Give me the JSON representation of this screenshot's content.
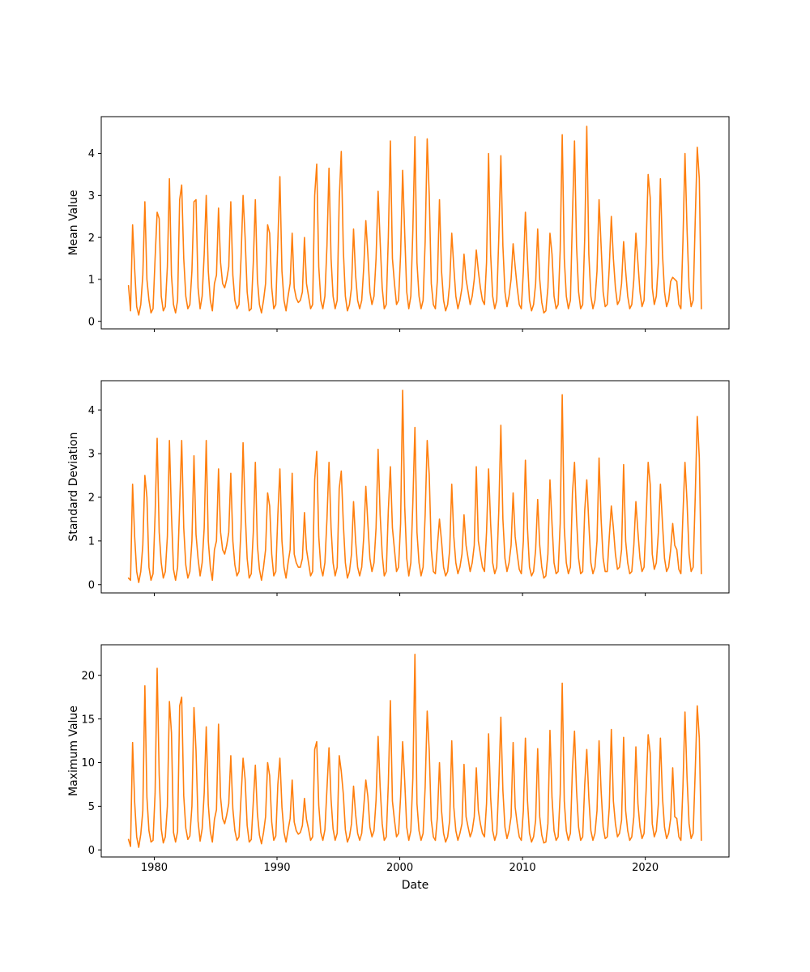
{
  "figure": {
    "background": "#ffffff",
    "line_color": "#ff7f0e",
    "text_color": "#000000"
  },
  "chart_data": [
    {
      "type": "line",
      "title": "",
      "ylabel": "Mean Value",
      "xlabel": "",
      "x_start": 1977.9,
      "x_step": 0.16667,
      "xlim": [
        1975.68,
        2026.82
      ],
      "ylim": [
        -0.18,
        4.88
      ],
      "xticks": [
        1980,
        1990,
        2000,
        2010,
        2020
      ],
      "show_x_tick_labels": false,
      "yticks": [
        0,
        1,
        2,
        3,
        4
      ],
      "grid": false,
      "legend": null,
      "series": [
        {
          "name": "mean",
          "values": [
            0.85,
            0.25,
            2.3,
            1.25,
            0.35,
            0.15,
            0.4,
            1.1,
            2.85,
            1.0,
            0.5,
            0.2,
            0.3,
            1.5,
            2.6,
            2.45,
            0.6,
            0.25,
            0.35,
            1.3,
            3.4,
            1.1,
            0.4,
            0.2,
            0.5,
            2.9,
            3.25,
            1.5,
            0.6,
            0.3,
            0.4,
            1.2,
            2.85,
            2.9,
            0.8,
            0.3,
            0.6,
            1.6,
            3.0,
            1.2,
            0.5,
            0.25,
            0.9,
            1.1,
            2.7,
            1.4,
            0.9,
            0.8,
            1.0,
            1.3,
            2.85,
            1.1,
            0.5,
            0.3,
            0.4,
            1.5,
            3.0,
            2.0,
            0.7,
            0.25,
            0.3,
            1.4,
            2.9,
            1.0,
            0.4,
            0.2,
            0.5,
            0.9,
            2.3,
            2.1,
            0.8,
            0.3,
            0.4,
            1.9,
            3.45,
            1.2,
            0.5,
            0.25,
            0.6,
            0.9,
            2.1,
            0.8,
            0.55,
            0.45,
            0.5,
            0.7,
            2.0,
            0.9,
            0.6,
            0.3,
            0.4,
            3.0,
            3.75,
            1.3,
            0.5,
            0.3,
            0.6,
            1.8,
            3.65,
            1.5,
            0.6,
            0.3,
            0.5,
            2.9,
            4.05,
            1.7,
            0.6,
            0.25,
            0.4,
            0.8,
            2.2,
            1.1,
            0.5,
            0.3,
            0.5,
            1.3,
            2.4,
            1.6,
            0.7,
            0.4,
            0.6,
            1.5,
            3.1,
            1.9,
            0.8,
            0.3,
            0.4,
            2.0,
            4.3,
            1.5,
            0.9,
            0.4,
            0.5,
            1.6,
            3.6,
            2.1,
            0.7,
            0.3,
            0.6,
            2.2,
            4.4,
            1.4,
            0.6,
            0.3,
            0.5,
            1.9,
            4.35,
            3.0,
            0.9,
            0.4,
            0.3,
            1.0,
            2.9,
            1.2,
            0.5,
            0.25,
            0.4,
            0.9,
            2.1,
            1.3,
            0.6,
            0.3,
            0.5,
            0.8,
            1.6,
            1.0,
            0.7,
            0.4,
            0.6,
            1.0,
            1.7,
            1.2,
            0.8,
            0.5,
            0.4,
            1.4,
            4.0,
            1.6,
            0.6,
            0.3,
            0.5,
            2.0,
            3.95,
            1.8,
            0.7,
            0.35,
            0.6,
            1.0,
            1.85,
            1.3,
            0.8,
            0.4,
            0.3,
            1.2,
            2.6,
            1.5,
            0.5,
            0.25,
            0.4,
            0.9,
            2.2,
            1.0,
            0.45,
            0.2,
            0.25,
            0.8,
            2.1,
            1.6,
            0.6,
            0.3,
            0.4,
            1.7,
            4.45,
            1.5,
            0.6,
            0.3,
            0.5,
            2.5,
            4.3,
            1.8,
            0.7,
            0.3,
            0.4,
            2.0,
            4.65,
            1.6,
            0.6,
            0.3,
            0.5,
            1.2,
            2.9,
            1.8,
            0.7,
            0.35,
            0.4,
            1.3,
            2.5,
            1.5,
            0.8,
            0.4,
            0.5,
            0.9,
            1.9,
            1.2,
            0.6,
            0.3,
            0.4,
            1.0,
            2.1,
            1.4,
            0.7,
            0.35,
            0.5,
            1.8,
            3.5,
            2.95,
            0.8,
            0.4,
            0.6,
            1.4,
            3.4,
            1.6,
            0.7,
            0.35,
            0.5,
            0.95,
            1.05,
            1.0,
            0.95,
            0.4,
            0.3,
            1.9,
            4.0,
            2.2,
            0.8,
            0.35,
            0.5,
            2.4,
            4.15,
            3.4,
            0.3
          ]
        }
      ]
    },
    {
      "type": "line",
      "title": "",
      "ylabel": "Standard Deviation",
      "xlabel": "",
      "x_start": 1977.9,
      "x_step": 0.16667,
      "xlim": [
        1975.68,
        2026.82
      ],
      "ylim": [
        -0.19,
        4.67
      ],
      "xticks": [
        1980,
        1990,
        2000,
        2010,
        2020
      ],
      "show_x_tick_labels": false,
      "yticks": [
        0,
        1,
        2,
        3,
        4
      ],
      "grid": false,
      "legend": null,
      "series": [
        {
          "name": "std",
          "values": [
            0.15,
            0.1,
            2.3,
            1.1,
            0.3,
            0.05,
            0.3,
            0.9,
            2.5,
            2.0,
            0.4,
            0.1,
            0.25,
            1.6,
            3.35,
            1.2,
            0.5,
            0.15,
            0.3,
            1.1,
            3.3,
            1.6,
            0.35,
            0.1,
            0.4,
            1.8,
            3.3,
            1.3,
            0.45,
            0.15,
            0.3,
            1.0,
            2.95,
            1.15,
            0.6,
            0.2,
            0.5,
            1.3,
            3.3,
            1.0,
            0.4,
            0.1,
            0.8,
            1.0,
            2.65,
            1.2,
            0.8,
            0.7,
            0.9,
            1.2,
            2.55,
            1.0,
            0.45,
            0.2,
            0.3,
            1.3,
            3.25,
            1.7,
            0.6,
            0.15,
            0.25,
            1.2,
            2.8,
            0.9,
            0.35,
            0.1,
            0.4,
            0.8,
            2.1,
            1.8,
            0.7,
            0.2,
            0.3,
            1.6,
            2.65,
            1.0,
            0.4,
            0.15,
            0.5,
            0.8,
            2.55,
            0.7,
            0.5,
            0.4,
            0.4,
            0.6,
            1.65,
            0.8,
            0.5,
            0.2,
            0.3,
            2.4,
            3.05,
            1.1,
            0.4,
            0.2,
            0.5,
            1.5,
            2.8,
            1.3,
            0.5,
            0.2,
            0.4,
            2.2,
            2.6,
            1.4,
            0.5,
            0.15,
            0.3,
            0.7,
            1.9,
            1.0,
            0.4,
            0.2,
            0.4,
            1.1,
            2.25,
            1.4,
            0.6,
            0.3,
            0.5,
            1.3,
            3.1,
            1.6,
            0.7,
            0.2,
            0.3,
            1.7,
            2.7,
            1.3,
            0.8,
            0.3,
            0.4,
            1.4,
            4.45,
            1.8,
            0.6,
            0.2,
            0.5,
            1.9,
            3.6,
            1.2,
            0.5,
            0.2,
            0.4,
            1.6,
            3.3,
            2.5,
            0.8,
            0.3,
            0.25,
            0.9,
            1.5,
            1.0,
            0.4,
            0.2,
            0.3,
            0.8,
            2.3,
            1.1,
            0.5,
            0.25,
            0.4,
            0.7,
            1.6,
            0.9,
            0.6,
            0.3,
            0.5,
            0.9,
            2.7,
            1.0,
            0.7,
            0.4,
            0.3,
            1.2,
            2.65,
            1.4,
            0.5,
            0.25,
            0.4,
            1.7,
            3.65,
            1.5,
            0.6,
            0.3,
            0.5,
            0.9,
            2.1,
            1.1,
            0.7,
            0.35,
            0.25,
            1.0,
            2.85,
            1.3,
            0.4,
            0.2,
            0.3,
            0.8,
            1.95,
            0.9,
            0.4,
            0.15,
            0.2,
            0.7,
            2.4,
            1.4,
            0.5,
            0.25,
            0.3,
            1.4,
            4.35,
            1.3,
            0.5,
            0.25,
            0.4,
            2.1,
            2.8,
            1.5,
            0.6,
            0.25,
            0.3,
            1.7,
            2.4,
            1.4,
            0.5,
            0.25,
            0.4,
            1.0,
            2.9,
            1.5,
            0.6,
            0.3,
            0.3,
            1.1,
            1.8,
            1.3,
            0.7,
            0.35,
            0.4,
            0.8,
            2.75,
            1.0,
            0.5,
            0.25,
            0.3,
            0.9,
            1.9,
            1.2,
            0.6,
            0.3,
            0.4,
            1.5,
            2.8,
            2.3,
            0.7,
            0.35,
            0.5,
            1.2,
            2.3,
            1.4,
            0.6,
            0.3,
            0.4,
            0.8,
            1.4,
            0.9,
            0.8,
            0.35,
            0.25,
            1.6,
            2.8,
            1.9,
            0.7,
            0.3,
            0.4,
            2.0,
            3.85,
            2.9,
            0.25
          ]
        }
      ]
    },
    {
      "type": "line",
      "title": "",
      "ylabel": "Maximum Value",
      "xlabel": "Date",
      "x_start": 1977.9,
      "x_step": 0.16667,
      "xlim": [
        1975.68,
        2026.82
      ],
      "ylim": [
        -0.81,
        23.5
      ],
      "xticks": [
        1980,
        1990,
        2000,
        2010,
        2020
      ],
      "show_x_tick_labels": true,
      "yticks": [
        0,
        5,
        10,
        15,
        20
      ],
      "grid": false,
      "legend": null,
      "series": [
        {
          "name": "max",
          "values": [
            1.2,
            0.4,
            12.3,
            5.5,
            1.5,
            0.3,
            1.8,
            4.5,
            18.8,
            6.0,
            2.2,
            0.9,
            1.1,
            6.5,
            20.8,
            8.6,
            2.4,
            0.8,
            1.5,
            5.0,
            17.0,
            13.4,
            2.0,
            0.9,
            2.1,
            16.5,
            17.5,
            6.2,
            2.5,
            1.2,
            1.6,
            5.0,
            16.3,
            11.4,
            3.3,
            1.0,
            2.4,
            6.5,
            14.1,
            5.2,
            2.1,
            0.9,
            3.5,
            4.6,
            14.4,
            6.0,
            3.6,
            3.0,
            4.0,
            5.3,
            10.8,
            4.7,
            2.2,
            1.1,
            1.5,
            6.0,
            10.5,
            8.1,
            2.8,
            0.9,
            1.2,
            5.5,
            9.7,
            4.2,
            1.7,
            0.7,
            2.0,
            3.8,
            10.0,
            8.5,
            3.2,
            1.1,
            1.6,
            7.5,
            10.5,
            4.9,
            2.0,
            0.9,
            2.3,
            3.6,
            8.0,
            3.2,
            2.2,
            1.8,
            2.0,
            2.8,
            5.9,
            3.5,
            2.4,
            1.1,
            1.5,
            11.5,
            12.4,
            5.1,
            2.0,
            1.1,
            2.3,
            7.0,
            11.7,
            5.8,
            2.4,
            1.1,
            1.9,
            10.8,
            9.0,
            6.4,
            2.3,
            0.9,
            1.5,
            3.0,
            7.3,
            4.1,
            1.9,
            1.1,
            1.9,
            5.0,
            8.0,
            6.1,
            2.6,
            1.5,
            2.2,
            5.7,
            13.0,
            7.2,
            3.0,
            1.1,
            1.5,
            7.6,
            17.1,
            5.6,
            3.4,
            1.5,
            1.9,
            6.1,
            12.4,
            7.9,
            2.6,
            1.1,
            2.2,
            8.3,
            22.4,
            5.3,
            2.2,
            1.1,
            1.9,
            7.2,
            15.9,
            11.3,
            3.4,
            1.5,
            1.1,
            3.8,
            10.0,
            4.5,
            1.9,
            0.9,
            1.5,
            3.4,
            12.5,
            4.9,
            2.2,
            1.1,
            1.9,
            3.0,
            9.8,
            3.8,
            2.6,
            1.5,
            2.2,
            3.8,
            9.4,
            4.5,
            3.0,
            1.9,
            1.5,
            5.3,
            13.3,
            6.0,
            2.2,
            1.1,
            1.9,
            7.6,
            15.2,
            6.8,
            2.6,
            1.3,
            2.2,
            3.8,
            12.3,
            4.9,
            3.0,
            1.5,
            1.1,
            4.5,
            12.8,
            5.7,
            1.9,
            0.9,
            1.5,
            3.4,
            11.6,
            3.8,
            1.7,
            0.8,
            0.9,
            3.0,
            13.7,
            6.0,
            2.2,
            1.1,
            1.5,
            6.4,
            19.1,
            5.6,
            2.2,
            1.1,
            1.9,
            9.4,
            13.6,
            6.8,
            2.6,
            1.1,
            1.5,
            7.5,
            11.5,
            6.0,
            2.2,
            1.1,
            1.9,
            4.5,
            12.5,
            6.8,
            2.6,
            1.3,
            1.5,
            4.9,
            13.8,
            5.6,
            3.0,
            1.5,
            1.9,
            3.4,
            12.9,
            4.5,
            2.2,
            1.1,
            1.5,
            3.8,
            11.8,
            5.3,
            2.6,
            1.3,
            1.9,
            6.8,
            13.2,
            11.1,
            3.0,
            1.5,
            2.2,
            5.3,
            12.8,
            6.0,
            2.6,
            1.3,
            1.9,
            3.6,
            9.4,
            3.8,
            3.6,
            1.5,
            1.1,
            7.2,
            15.8,
            8.3,
            3.0,
            1.3,
            1.9,
            9.0,
            16.5,
            12.8,
            1.1
          ]
        }
      ]
    }
  ]
}
